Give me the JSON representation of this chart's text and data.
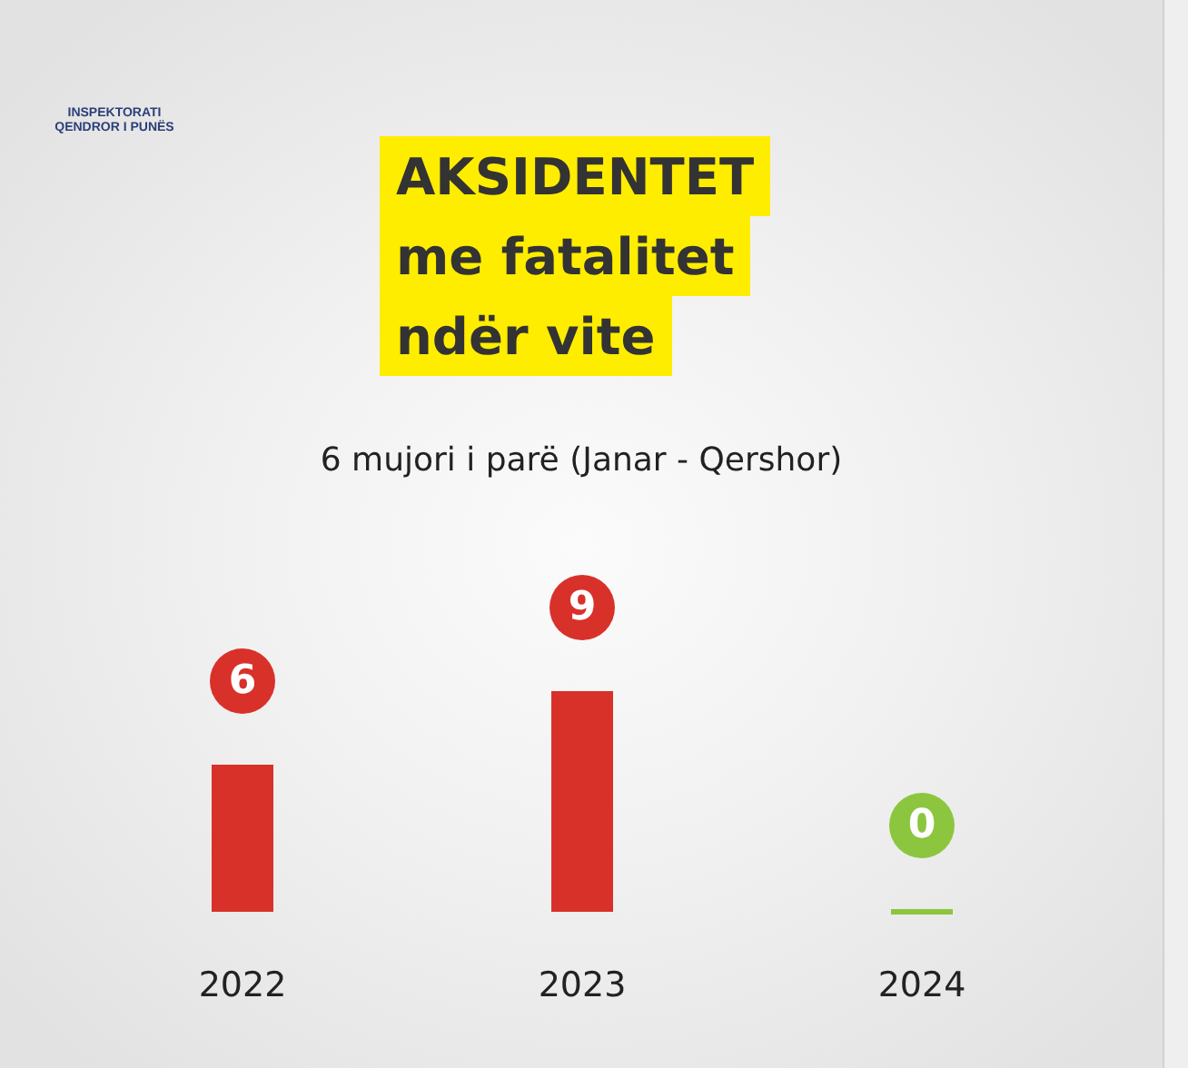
{
  "chart_data": {
    "type": "bar",
    "title": "AKSIDENTET me fatalitet ndër vite",
    "subtitle": "6 mujori i parë (Janar - Qershor)",
    "annotations": [
      "INSPEKTORATI QENDROR I PUNËS"
    ],
    "categories": [
      "2022",
      "2023",
      "2024"
    ],
    "values": [
      6,
      9,
      0
    ],
    "colors": [
      "#d8312a",
      "#d8312a",
      "#8cc63f"
    ],
    "data_labels": true,
    "tick_labels": "x"
  }
}
